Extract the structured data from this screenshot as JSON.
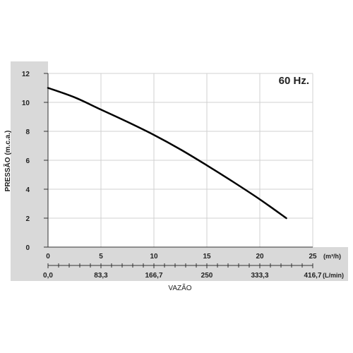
{
  "chart_data": {
    "type": "line",
    "annotation": "60 Hz.",
    "ylabel": "PRESSÃO (m.c.a.)",
    "xlabel": "VAZÃO",
    "x_unit_primary": "(m³/h)",
    "x_unit_secondary": "(L/min)",
    "ylim": [
      0,
      12
    ],
    "xlim": [
      0,
      25
    ],
    "y_ticks": [
      "0",
      "2",
      "4",
      "6",
      "8",
      "10",
      "12"
    ],
    "y_tick_values": [
      0,
      2,
      4,
      6,
      8,
      10,
      12
    ],
    "x_ticks_primary": [
      "0",
      "5",
      "10",
      "15",
      "20",
      "25"
    ],
    "x_tick_values": [
      0,
      5,
      10,
      15,
      20,
      25
    ],
    "x_ticks_secondary": [
      "0,0",
      "83,3",
      "166,7",
      "250",
      "333,3",
      "416,7"
    ],
    "grid": true,
    "series": [
      {
        "color": "#000000",
        "x": [
          0,
          2.5,
          5,
          7.5,
          10,
          12.5,
          15,
          17.5,
          20,
          22.5
        ],
        "y": [
          11.0,
          10.35,
          9.5,
          8.65,
          7.75,
          6.75,
          5.65,
          4.5,
          3.3,
          2.0
        ]
      }
    ],
    "colors": {
      "panel": "#d9d9d9",
      "grid": "#d0d0d0",
      "axis": "#333333",
      "line": "#000000"
    }
  }
}
